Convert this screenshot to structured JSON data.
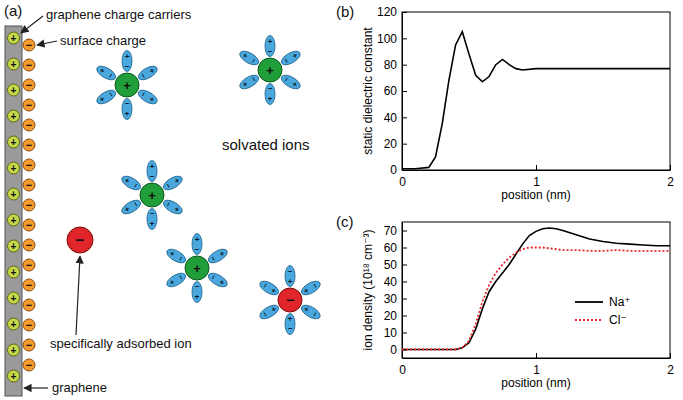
{
  "diagram": {
    "panel_label": "(a)",
    "labels": {
      "charge_carriers": "graphene charge carriers",
      "surface_charge": "surface charge",
      "solvated_ions": "solvated ions",
      "adsorbed_ion": "specifically adsorbed ion",
      "graphene": "graphene"
    },
    "signs": {
      "carrier": "+",
      "surface_charge": "−",
      "cation": "+",
      "anion": "−",
      "water_positive": "+",
      "water_negative": "−"
    }
  },
  "chart_data": [
    {
      "type": "line",
      "panel_label": "(b)",
      "x_label": "position (nm)",
      "y_label": "static dielectric constant",
      "x": [
        0,
        0.1,
        0.2,
        0.25,
        0.3,
        0.35,
        0.4,
        0.45,
        0.5,
        0.55,
        0.6,
        0.65,
        0.7,
        0.75,
        0.8,
        0.85,
        0.9,
        1.0,
        1.2,
        1.5,
        2.0
      ],
      "values": [
        1,
        1,
        2,
        10,
        35,
        68,
        95,
        105,
        88,
        72,
        67,
        71,
        80,
        84,
        80,
        77,
        76,
        77,
        77,
        77,
        77
      ],
      "color": "#000000",
      "xlim": [
        0,
        2
      ],
      "xticks": [
        0,
        1,
        2
      ],
      "ylim": [
        0,
        120
      ],
      "yticks": [
        0,
        20,
        40,
        60,
        80,
        100,
        120
      ]
    },
    {
      "type": "line",
      "panel_label": "(c)",
      "x_label": "position (nm)",
      "y_label": "ion density (10¹⁸ cm⁻³)",
      "x": [
        0,
        0.1,
        0.2,
        0.3,
        0.4,
        0.45,
        0.5,
        0.55,
        0.6,
        0.65,
        0.7,
        0.75,
        0.8,
        0.85,
        0.9,
        0.95,
        1.0,
        1.05,
        1.1,
        1.15,
        1.2,
        1.3,
        1.4,
        1.5,
        1.6,
        1.7,
        1.8,
        1.9,
        2.0
      ],
      "series": [
        {
          "name": "Na⁺",
          "color": "#000000",
          "line_style": "solid",
          "values": [
            0,
            0,
            0,
            0,
            0,
            1,
            4,
            12,
            24,
            34,
            40,
            45,
            50,
            56,
            62,
            67,
            69.5,
            71,
            71.5,
            71,
            70,
            67.5,
            65,
            63.5,
            62.5,
            62,
            61.5,
            61,
            61
          ]
        },
        {
          "name": "Cl⁻",
          "color": "#e8262a",
          "line_style": "dotted",
          "values": [
            0,
            0,
            0,
            0,
            0,
            1,
            5,
            15,
            28,
            38,
            45,
            50,
            54,
            57,
            59,
            60,
            60,
            60,
            59.5,
            59,
            58.5,
            58.5,
            58,
            58,
            58.5,
            58,
            58,
            58,
            58
          ]
        }
      ],
      "xlim": [
        0,
        2
      ],
      "xticks": [
        0,
        1,
        2
      ],
      "ylim": [
        -5,
        75
      ],
      "yticks": [
        0,
        10,
        20,
        30,
        40,
        50,
        60,
        70
      ],
      "legend": "lower right"
    }
  ]
}
